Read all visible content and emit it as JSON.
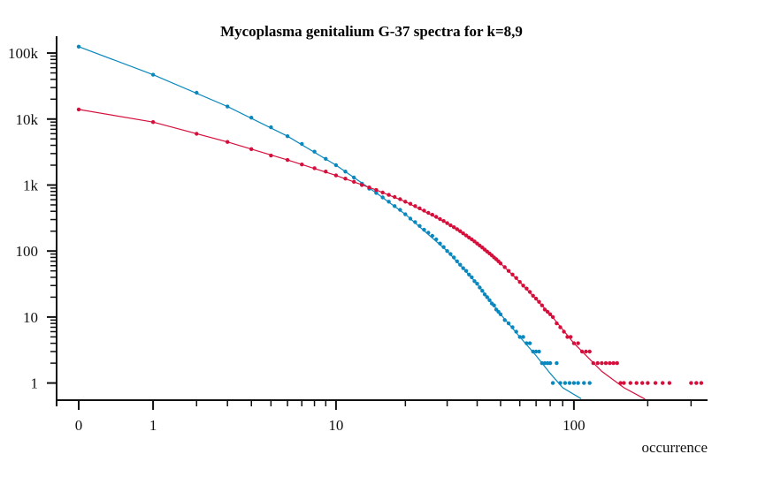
{
  "chart_data": {
    "type": "scatter",
    "title": "Mycoplasma genitalium G-37 spectra for k=8,9",
    "xlabel": "occurrence",
    "ylabel": "",
    "x_scale": "log1p",
    "y_scale": "log",
    "xlim": [
      0,
      350
    ],
    "ylim": [
      0.55,
      180000
    ],
    "x_tick_labels": [
      {
        "value": 0,
        "label": "0"
      },
      {
        "value": 1,
        "label": "1"
      },
      {
        "value": 10,
        "label": "10"
      },
      {
        "value": 100,
        "label": "100"
      }
    ],
    "y_tick_labels": [
      {
        "value": 1,
        "label": "1"
      },
      {
        "value": 10,
        "label": "10"
      },
      {
        "value": 100,
        "label": "100"
      },
      {
        "value": 1000,
        "label": "1k"
      },
      {
        "value": 10000,
        "label": "10k"
      },
      {
        "value": 100000,
        "label": "100k"
      }
    ],
    "grid": false,
    "legend": "none",
    "series": [
      {
        "color": "#0a87bd",
        "points": [
          [
            0,
            125000
          ],
          [
            1,
            47000
          ],
          [
            2,
            25000
          ],
          [
            3,
            15500
          ],
          [
            4,
            10500
          ],
          [
            5,
            7500
          ],
          [
            6,
            5500
          ],
          [
            7,
            4200
          ],
          [
            8,
            3200
          ],
          [
            9,
            2500
          ],
          [
            10,
            2000
          ],
          [
            11,
            1600
          ],
          [
            12,
            1300
          ],
          [
            13,
            1050
          ],
          [
            14,
            880
          ],
          [
            15,
            760
          ],
          [
            16,
            650
          ],
          [
            17,
            560
          ],
          [
            18,
            480
          ],
          [
            19,
            420
          ],
          [
            20,
            360
          ],
          [
            21,
            310
          ],
          [
            22,
            275
          ],
          [
            23,
            240
          ],
          [
            24,
            210
          ],
          [
            25,
            190
          ],
          [
            26,
            170
          ],
          [
            27,
            150
          ],
          [
            28,
            130
          ],
          [
            29,
            115
          ],
          [
            30,
            100
          ],
          [
            31,
            90
          ],
          [
            32,
            80
          ],
          [
            33,
            70
          ],
          [
            34,
            62
          ],
          [
            35,
            55
          ],
          [
            36,
            50
          ],
          [
            37,
            44
          ],
          [
            38,
            40
          ],
          [
            39,
            35
          ],
          [
            40,
            32
          ],
          [
            41,
            28
          ],
          [
            42,
            25
          ],
          [
            43,
            22
          ],
          [
            44,
            20
          ],
          [
            45,
            18
          ],
          [
            46,
            16
          ],
          [
            47,
            15
          ],
          [
            48,
            13
          ],
          [
            49,
            12
          ],
          [
            50,
            11
          ],
          [
            52,
            9
          ],
          [
            54,
            8
          ],
          [
            56,
            7
          ],
          [
            58,
            6
          ],
          [
            60,
            5
          ],
          [
            62,
            5
          ],
          [
            64,
            4
          ],
          [
            66,
            4
          ],
          [
            68,
            3
          ],
          [
            70,
            3
          ],
          [
            72,
            3
          ],
          [
            74,
            2
          ],
          [
            76,
            2
          ],
          [
            78,
            2
          ],
          [
            80,
            2
          ],
          [
            82,
            1
          ],
          [
            85,
            2
          ],
          [
            88,
            1
          ],
          [
            92,
            1
          ],
          [
            96,
            1
          ],
          [
            100,
            1
          ],
          [
            104,
            1
          ],
          [
            110,
            1
          ],
          [
            116,
            1
          ]
        ],
        "trend": [
          [
            0,
            125000
          ],
          [
            1,
            47000
          ],
          [
            3,
            15500
          ],
          [
            6,
            5500
          ],
          [
            10,
            2000
          ],
          [
            15,
            760
          ],
          [
            20,
            360
          ],
          [
            30,
            100
          ],
          [
            40,
            32
          ],
          [
            50,
            11
          ],
          [
            60,
            5
          ],
          [
            70,
            2.6
          ],
          [
            80,
            1.4
          ],
          [
            90,
            0.85
          ],
          [
            107,
            0.58
          ]
        ]
      },
      {
        "color": "#d50f3b",
        "points": [
          [
            0,
            14000
          ],
          [
            1,
            9000
          ],
          [
            2,
            6000
          ],
          [
            3,
            4500
          ],
          [
            4,
            3500
          ],
          [
            5,
            2800
          ],
          [
            6,
            2400
          ],
          [
            7,
            2050
          ],
          [
            8,
            1800
          ],
          [
            9,
            1600
          ],
          [
            10,
            1400
          ],
          [
            11,
            1250
          ],
          [
            12,
            1120
          ],
          [
            13,
            1000
          ],
          [
            14,
            920
          ],
          [
            15,
            840
          ],
          [
            16,
            770
          ],
          [
            17,
            710
          ],
          [
            18,
            660
          ],
          [
            19,
            610
          ],
          [
            20,
            560
          ],
          [
            21,
            520
          ],
          [
            22,
            480
          ],
          [
            23,
            445
          ],
          [
            24,
            410
          ],
          [
            25,
            380
          ],
          [
            26,
            355
          ],
          [
            27,
            330
          ],
          [
            28,
            305
          ],
          [
            29,
            285
          ],
          [
            30,
            265
          ],
          [
            31,
            245
          ],
          [
            32,
            230
          ],
          [
            33,
            215
          ],
          [
            34,
            200
          ],
          [
            35,
            185
          ],
          [
            36,
            172
          ],
          [
            37,
            160
          ],
          [
            38,
            150
          ],
          [
            39,
            140
          ],
          [
            40,
            130
          ],
          [
            41,
            121
          ],
          [
            42,
            113
          ],
          [
            43,
            105
          ],
          [
            44,
            98
          ],
          [
            45,
            92
          ],
          [
            46,
            86
          ],
          [
            47,
            80
          ],
          [
            48,
            75
          ],
          [
            49,
            70
          ],
          [
            50,
            65
          ],
          [
            52,
            57
          ],
          [
            54,
            50
          ],
          [
            56,
            44
          ],
          [
            58,
            39
          ],
          [
            60,
            34
          ],
          [
            62,
            30
          ],
          [
            64,
            27
          ],
          [
            66,
            24
          ],
          [
            68,
            21
          ],
          [
            70,
            19
          ],
          [
            72,
            17
          ],
          [
            74,
            15
          ],
          [
            76,
            13
          ],
          [
            78,
            12
          ],
          [
            80,
            11
          ],
          [
            82,
            10
          ],
          [
            85,
            8
          ],
          [
            88,
            7
          ],
          [
            91,
            6
          ],
          [
            94,
            5
          ],
          [
            97,
            5
          ],
          [
            100,
            4
          ],
          [
            104,
            4
          ],
          [
            108,
            3
          ],
          [
            112,
            3
          ],
          [
            116,
            3
          ],
          [
            120,
            2
          ],
          [
            125,
            2
          ],
          [
            130,
            2
          ],
          [
            135,
            2
          ],
          [
            140,
            2
          ],
          [
            145,
            2
          ],
          [
            150,
            2
          ],
          [
            155,
            1
          ],
          [
            160,
            1
          ],
          [
            170,
            1
          ],
          [
            180,
            1
          ],
          [
            190,
            1
          ],
          [
            200,
            1
          ],
          [
            215,
            1
          ],
          [
            230,
            1
          ],
          [
            245,
            1
          ],
          [
            300,
            1
          ],
          [
            315,
            1
          ],
          [
            330,
            1
          ]
        ],
        "trend": [
          [
            0,
            14000
          ],
          [
            1,
            9000
          ],
          [
            3,
            4500
          ],
          [
            6,
            2400
          ],
          [
            10,
            1400
          ],
          [
            15,
            840
          ],
          [
            20,
            560
          ],
          [
            30,
            265
          ],
          [
            40,
            130
          ],
          [
            50,
            65
          ],
          [
            60,
            34
          ],
          [
            80,
            11
          ],
          [
            100,
            4
          ],
          [
            130,
            1.5
          ],
          [
            160,
            0.85
          ],
          [
            195,
            0.57
          ]
        ]
      }
    ]
  }
}
